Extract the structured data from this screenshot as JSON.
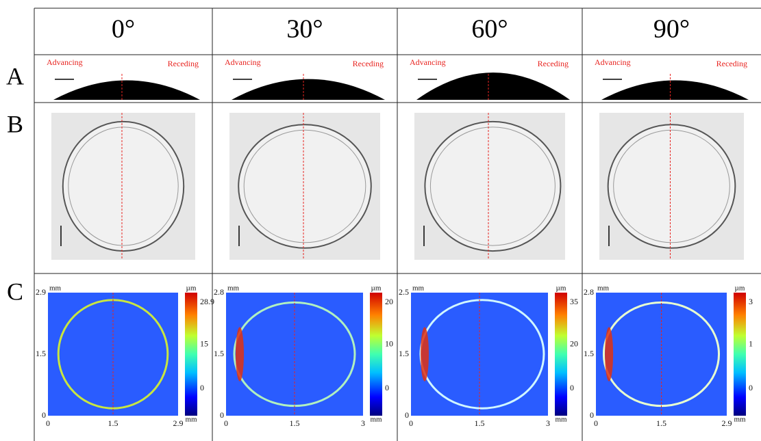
{
  "row_labels": [
    "A",
    "B",
    "C"
  ],
  "columns": [
    {
      "angle": "0°",
      "advancing": "Advancing",
      "receding": "Receding",
      "map": {
        "y_unit": "mm",
        "y_ticks": [
          "2.9",
          "1.5",
          "0"
        ],
        "x_ticks": [
          "0",
          "1.5",
          "2.9"
        ],
        "colorbar_unit": "µm",
        "colorbar_ticks": [
          "28.9",
          "15",
          "0"
        ],
        "colorbar_bottom_unit": "mm"
      }
    },
    {
      "angle": "30°",
      "advancing": "Advancing",
      "receding": "Receding",
      "map": {
        "y_unit": "mm",
        "y_ticks": [
          "2.8",
          "1.5",
          "0"
        ],
        "x_ticks": [
          "0",
          "1.5",
          "3"
        ],
        "colorbar_unit": "µm",
        "colorbar_ticks": [
          "20",
          "10",
          "0"
        ],
        "colorbar_bottom_unit": "mm"
      }
    },
    {
      "angle": "60°",
      "advancing": "Advancing",
      "receding": "Receding",
      "map": {
        "y_unit": "mm",
        "y_ticks": [
          "2.5",
          "1.5",
          "0"
        ],
        "x_ticks": [
          "0",
          "1.5",
          "3"
        ],
        "colorbar_unit": "µm",
        "colorbar_ticks": [
          "35",
          "20",
          "0"
        ],
        "colorbar_bottom_unit": "mm"
      }
    },
    {
      "angle": "90°",
      "advancing": "Advancing",
      "receding": "Receding",
      "map": {
        "y_unit": "mm",
        "y_ticks": [
          "2.8",
          "1.5",
          "0"
        ],
        "x_ticks": [
          "0",
          "1.5",
          "2.9"
        ],
        "colorbar_unit": "µm",
        "colorbar_ticks": [
          "3",
          "1",
          "0"
        ],
        "colorbar_bottom_unit": "mm"
      }
    }
  ]
}
